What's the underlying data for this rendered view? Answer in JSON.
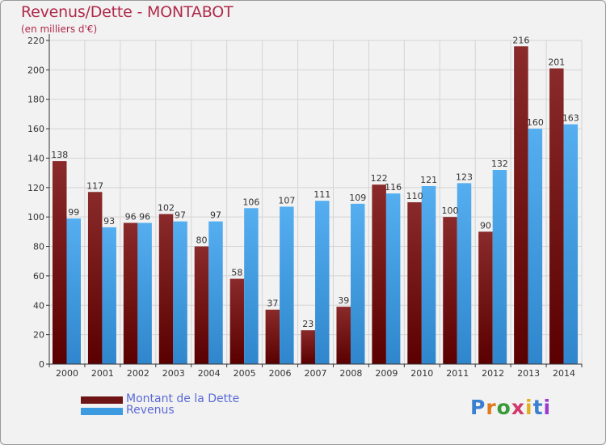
{
  "header": {
    "title": "Revenus/Dette - MONTABOT",
    "subtitle": "(en milliers d'€)"
  },
  "chart_data": {
    "type": "bar",
    "categories": [
      "2000",
      "2001",
      "2002",
      "2003",
      "2004",
      "2005",
      "2006",
      "2007",
      "2008",
      "2009",
      "2010",
      "2011",
      "2012",
      "2013",
      "2014"
    ],
    "series": [
      {
        "name": "Montant de la Dette",
        "color": "#7a1c1c",
        "values": [
          138,
          117,
          96,
          102,
          80,
          58,
          37,
          23,
          39,
          122,
          110,
          100,
          90,
          216,
          201
        ]
      },
      {
        "name": "Revenus",
        "color": "#3c9be0",
        "values": [
          99,
          93,
          96,
          97,
          97,
          106,
          107,
          111,
          109,
          116,
          121,
          123,
          132,
          160,
          163
        ]
      }
    ],
    "ylim": [
      0,
      220
    ],
    "yticks": [
      0,
      20,
      40,
      60,
      80,
      100,
      120,
      140,
      160,
      180,
      200,
      220
    ],
    "grid": true,
    "legend": "bottom-left"
  },
  "legend": {
    "items": [
      {
        "label": "Montant de la Dette",
        "color": "#6e1414"
      },
      {
        "label": "Revenus",
        "color": "#3c9be0"
      }
    ]
  },
  "logo": {
    "letters": [
      "P",
      "r",
      "o",
      "x",
      "i",
      "t",
      "i"
    ],
    "colors": [
      "#3a7fd0",
      "#e07a1a",
      "#3a9a3a",
      "#d03a6a",
      "#e0b020",
      "#3a7fd0",
      "#9a3ad0"
    ]
  }
}
